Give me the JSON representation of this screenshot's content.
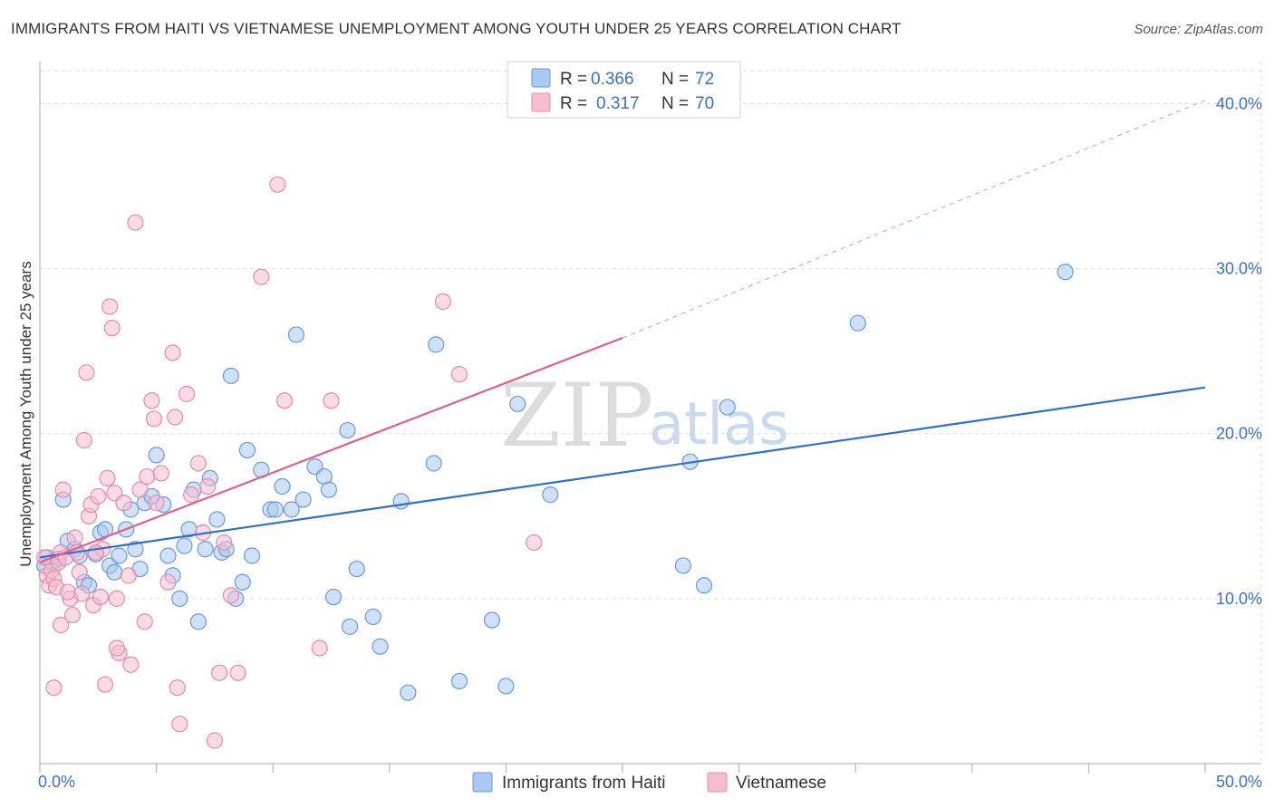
{
  "header": {
    "title": "IMMIGRANTS FROM HAITI VS VIETNAMESE UNEMPLOYMENT AMONG YOUTH UNDER 25 YEARS CORRELATION CHART",
    "source": "Source: ZipAtlas.com"
  },
  "watermark": {
    "part1": "ZIP",
    "part2": "atlas"
  },
  "colors": {
    "haiti_fill": "#aac8f0",
    "haiti_stroke": "#6a9ad8",
    "haiti_line": "#3070c8",
    "viet_fill": "#f6bcd0",
    "viet_stroke": "#e48cab",
    "viet_line": "#e0608f",
    "tick_label": "#3d6fc4",
    "grid": "#dddddd"
  },
  "chart_data": {
    "type": "scatter",
    "title": "IMMIGRANTS FROM HAITI VS VIETNAMESE UNEMPLOYMENT AMONG YOUTH UNDER 25 YEARS CORRELATION CHART",
    "xlabel": "",
    "ylabel": "Unemployment Among Youth under 25 years",
    "xlim": [
      0,
      50
    ],
    "ylim": [
      0,
      42
    ],
    "x_tick_labels": [
      {
        "value": 0,
        "label": "0.0%"
      },
      {
        "value": 50,
        "label": "50.0%"
      }
    ],
    "y_tick_labels": [
      {
        "value": 10,
        "label": "10.0%"
      },
      {
        "value": 20,
        "label": "20.0%"
      },
      {
        "value": 30,
        "label": "30.0%"
      },
      {
        "value": 40,
        "label": "40.0%"
      }
    ],
    "legend": {
      "position": "top-center",
      "entries": [
        {
          "r_label": "R =",
          "r_value": "0.366",
          "n_label": "N =",
          "n_value": "72"
        },
        {
          "r_label": "R =",
          "r_value": "0.317",
          "n_label": "N =",
          "n_value": "70"
        }
      ]
    },
    "series": [
      {
        "name": "Immigrants from Haiti",
        "color": "#aac8f0",
        "trend": {
          "x": [
            0,
            50
          ],
          "y": [
            12.5,
            22.8
          ],
          "dashed_extension": false
        },
        "points": [
          [
            0.2,
            12.0
          ],
          [
            0.3,
            12.5
          ],
          [
            0.5,
            12.2
          ],
          [
            0.8,
            12.4
          ],
          [
            1.0,
            16.0
          ],
          [
            1.2,
            13.5
          ],
          [
            1.5,
            13.0
          ],
          [
            1.7,
            12.6
          ],
          [
            1.9,
            11.0
          ],
          [
            2.1,
            10.8
          ],
          [
            2.4,
            12.7
          ],
          [
            2.6,
            14.0
          ],
          [
            2.8,
            14.2
          ],
          [
            3.0,
            12.0
          ],
          [
            3.2,
            11.6
          ],
          [
            3.4,
            12.6
          ],
          [
            3.7,
            14.2
          ],
          [
            3.9,
            15.4
          ],
          [
            4.1,
            13.0
          ],
          [
            4.3,
            11.8
          ],
          [
            4.5,
            15.8
          ],
          [
            4.8,
            16.2
          ],
          [
            5.0,
            18.7
          ],
          [
            5.3,
            15.7
          ],
          [
            5.5,
            12.6
          ],
          [
            5.7,
            11.4
          ],
          [
            6.0,
            10.0
          ],
          [
            6.2,
            13.2
          ],
          [
            6.4,
            14.2
          ],
          [
            6.6,
            16.6
          ],
          [
            6.8,
            8.6
          ],
          [
            7.1,
            13.0
          ],
          [
            7.3,
            17.3
          ],
          [
            7.6,
            14.8
          ],
          [
            7.8,
            12.8
          ],
          [
            8.0,
            13.0
          ],
          [
            8.2,
            23.5
          ],
          [
            8.4,
            10.0
          ],
          [
            8.7,
            11.0
          ],
          [
            8.9,
            19.0
          ],
          [
            9.1,
            12.6
          ],
          [
            9.5,
            17.8
          ],
          [
            9.9,
            15.4
          ],
          [
            10.1,
            15.4
          ],
          [
            10.4,
            16.8
          ],
          [
            10.8,
            15.4
          ],
          [
            11.0,
            26.0
          ],
          [
            11.3,
            16.0
          ],
          [
            11.8,
            18.0
          ],
          [
            12.2,
            17.4
          ],
          [
            12.4,
            16.6
          ],
          [
            12.6,
            10.1
          ],
          [
            13.2,
            20.2
          ],
          [
            13.3,
            8.3
          ],
          [
            13.6,
            11.8
          ],
          [
            14.3,
            8.9
          ],
          [
            14.6,
            7.1
          ],
          [
            15.5,
            15.9
          ],
          [
            15.8,
            4.3
          ],
          [
            16.9,
            18.2
          ],
          [
            17.0,
            25.4
          ],
          [
            18.0,
            5.0
          ],
          [
            19.4,
            8.7
          ],
          [
            20.0,
            4.7
          ],
          [
            20.5,
            21.8
          ],
          [
            21.9,
            16.3
          ],
          [
            27.6,
            12.0
          ],
          [
            27.9,
            18.3
          ],
          [
            28.5,
            10.8
          ],
          [
            29.5,
            21.6
          ],
          [
            35.1,
            26.7
          ],
          [
            44.0,
            29.8
          ]
        ]
      },
      {
        "name": "Vietnamese",
        "color": "#f6bcd0",
        "trend": {
          "x": [
            0,
            25
          ],
          "y": [
            12.2,
            25.8
          ],
          "dashed_extension": true,
          "extension_to": [
            50,
            40.2
          ]
        },
        "points": [
          [
            0.2,
            12.5
          ],
          [
            0.3,
            11.4
          ],
          [
            0.4,
            10.8
          ],
          [
            0.5,
            11.7
          ],
          [
            0.6,
            11.2
          ],
          [
            0.7,
            10.7
          ],
          [
            0.8,
            12.2
          ],
          [
            0.9,
            12.8
          ],
          [
            1.0,
            16.6
          ],
          [
            1.1,
            12.5
          ],
          [
            1.3,
            10.0
          ],
          [
            1.4,
            9.0
          ],
          [
            1.5,
            13.7
          ],
          [
            1.6,
            12.8
          ],
          [
            1.7,
            11.6
          ],
          [
            1.9,
            19.6
          ],
          [
            2.0,
            23.7
          ],
          [
            2.1,
            15.0
          ],
          [
            2.2,
            15.7
          ],
          [
            2.3,
            9.6
          ],
          [
            2.5,
            16.2
          ],
          [
            2.7,
            13.0
          ],
          [
            2.9,
            17.3
          ],
          [
            3.0,
            27.7
          ],
          [
            3.1,
            26.4
          ],
          [
            3.2,
            16.4
          ],
          [
            3.3,
            10.0
          ],
          [
            3.4,
            6.7
          ],
          [
            3.6,
            15.8
          ],
          [
            3.8,
            11.4
          ],
          [
            3.9,
            6.0
          ],
          [
            4.1,
            32.8
          ],
          [
            4.3,
            16.6
          ],
          [
            4.5,
            8.6
          ],
          [
            4.6,
            17.4
          ],
          [
            4.8,
            22.0
          ],
          [
            4.9,
            20.9
          ],
          [
            5.0,
            15.8
          ],
          [
            5.2,
            17.6
          ],
          [
            5.5,
            11.0
          ],
          [
            5.7,
            24.9
          ],
          [
            5.8,
            21.0
          ],
          [
            5.9,
            4.6
          ],
          [
            6.0,
            2.4
          ],
          [
            6.3,
            22.4
          ],
          [
            6.5,
            16.3
          ],
          [
            6.8,
            18.2
          ],
          [
            7.0,
            14.0
          ],
          [
            7.2,
            16.8
          ],
          [
            7.5,
            1.4
          ],
          [
            7.7,
            5.5
          ],
          [
            7.9,
            13.4
          ],
          [
            8.2,
            10.2
          ],
          [
            8.5,
            5.5
          ],
          [
            9.5,
            29.5
          ],
          [
            10.2,
            35.1
          ],
          [
            10.5,
            22.0
          ],
          [
            12.0,
            7.0
          ],
          [
            12.5,
            22.0
          ],
          [
            17.3,
            28.0
          ],
          [
            18.0,
            23.6
          ],
          [
            21.2,
            13.4
          ],
          [
            2.6,
            10.1
          ],
          [
            0.9,
            8.4
          ],
          [
            1.2,
            10.4
          ],
          [
            0.6,
            4.6
          ],
          [
            2.8,
            4.8
          ],
          [
            3.3,
            7.0
          ],
          [
            1.8,
            10.3
          ],
          [
            2.4,
            12.8
          ]
        ]
      }
    ]
  }
}
